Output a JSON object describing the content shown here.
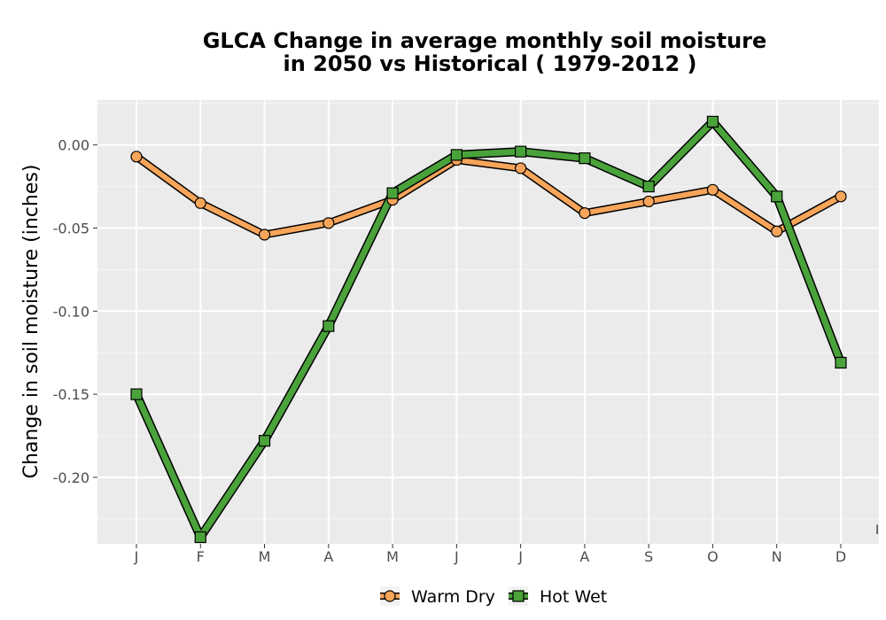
{
  "chart_data": {
    "type": "line",
    "title_line1": "GLCA  Change in average monthly soil moisture",
    "title_line2": "in 2050 vs Historical ( 1979-2012 )",
    "ylabel": "Change in soil moisture (inches)",
    "xlabel": "",
    "categories": [
      "J",
      "F",
      "M",
      "A",
      "M",
      "J",
      "J",
      "A",
      "S",
      "O",
      "N",
      "D"
    ],
    "ylim": [
      -0.24,
      0.027
    ],
    "yticks": [
      0.0,
      -0.05,
      -0.1,
      -0.15,
      -0.2
    ],
    "ytick_labels": [
      "0.00",
      "-0.05",
      "-0.10",
      "-0.15",
      "-0.20"
    ],
    "grid": true,
    "legend_position": "bottom",
    "corner_mark": "I",
    "series": [
      {
        "name": "Warm Dry",
        "color": "#f6a55a",
        "marker": "circle",
        "values": [
          -0.007,
          -0.035,
          -0.054,
          -0.047,
          -0.033,
          -0.009,
          -0.014,
          -0.041,
          -0.034,
          -0.027,
          -0.052,
          -0.031
        ]
      },
      {
        "name": "Hot Wet",
        "color": "#4aa23a",
        "marker": "square",
        "values": [
          -0.15,
          -0.236,
          -0.178,
          -0.109,
          -0.029,
          -0.006,
          -0.004,
          -0.008,
          -0.025,
          0.014,
          -0.031,
          -0.131
        ]
      }
    ]
  }
}
